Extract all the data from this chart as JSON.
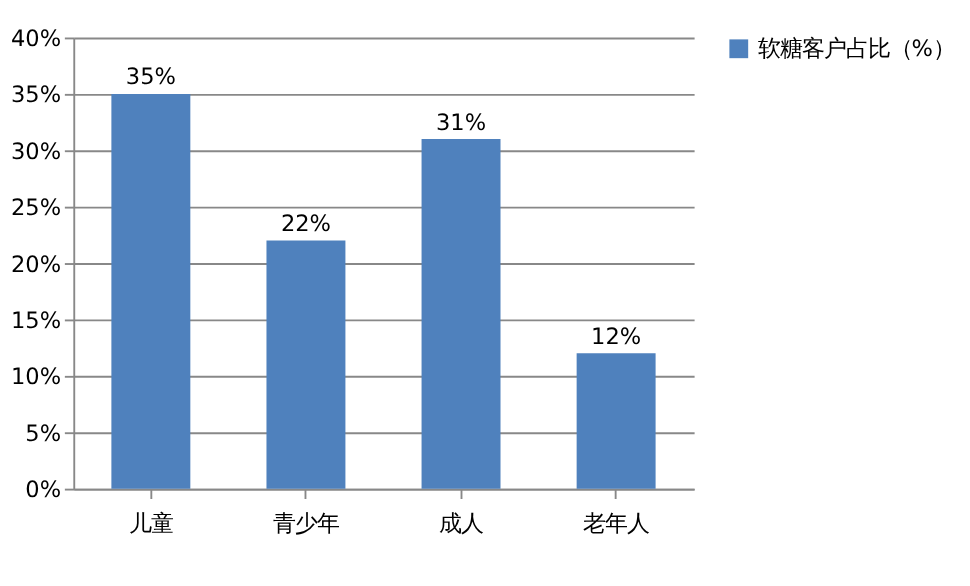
{
  "chart_data": {
    "type": "bar",
    "categories": [
      "儿童",
      "青少年",
      "成人",
      "老年人"
    ],
    "series": [
      {
        "name": "软糖客户占比（%）",
        "color": "#4f81bd",
        "values": [
          35,
          22,
          31,
          12
        ],
        "value_labels": [
          "35%",
          "22%",
          "31%",
          "12%"
        ]
      }
    ],
    "ylim": [
      0,
      40
    ],
    "yticks": [
      {
        "value": 0,
        "label": "0%"
      },
      {
        "value": 5,
        "label": "5%"
      },
      {
        "value": 10,
        "label": "10%"
      },
      {
        "value": 15,
        "label": "15%"
      },
      {
        "value": 20,
        "label": "20%"
      },
      {
        "value": 25,
        "label": "25%"
      },
      {
        "value": 30,
        "label": "30%"
      },
      {
        "value": 35,
        "label": "35%"
      },
      {
        "value": 40,
        "label": "40%"
      }
    ],
    "grid": "y",
    "legend": "right"
  }
}
